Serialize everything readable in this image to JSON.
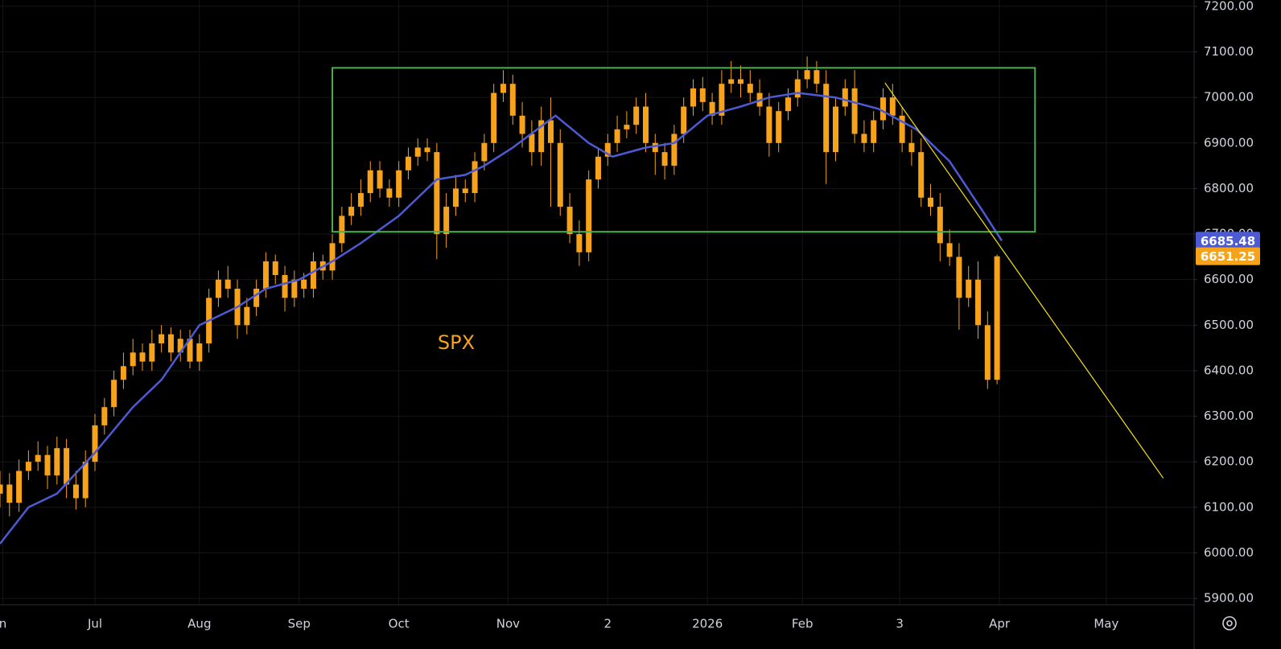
{
  "chart_data": {
    "type": "candlestick",
    "annotation": "SPX",
    "candle_color": "#f7a21b",
    "grid": true,
    "xlim": [
      0,
      251.5
    ],
    "ylim": [
      5886,
      7214
    ],
    "xticks": [
      {
        "value": 0.6,
        "label": "n"
      },
      {
        "value": 20,
        "label": "Jul"
      },
      {
        "value": 42,
        "label": "Aug"
      },
      {
        "value": 63,
        "label": "Sep"
      },
      {
        "value": 84,
        "label": "Oct"
      },
      {
        "value": 107,
        "label": "Nov"
      },
      {
        "value": 128,
        "label": "2"
      },
      {
        "value": 149,
        "label": "2026"
      },
      {
        "value": 169,
        "label": "Feb"
      },
      {
        "value": 189.5,
        "label": "3"
      },
      {
        "value": 210.5,
        "label": "Apr"
      },
      {
        "value": 233,
        "label": "May"
      }
    ],
    "yticks": [
      {
        "value": 7200,
        "label": "7200.00"
      },
      {
        "value": 7100,
        "label": "7100.00"
      },
      {
        "value": 7000,
        "label": "7000.00"
      },
      {
        "value": 6900,
        "label": "6900.00"
      },
      {
        "value": 6800,
        "label": "6800.00"
      },
      {
        "value": 6700,
        "label": "6700.00"
      },
      {
        "value": 6600,
        "label": "6600.00"
      },
      {
        "value": 6500,
        "label": "6500.00"
      },
      {
        "value": 6400,
        "label": "6400.00"
      },
      {
        "value": 6300,
        "label": "6300.00"
      },
      {
        "value": 6200,
        "label": "6200.00"
      },
      {
        "value": 6100,
        "label": "6100.00"
      },
      {
        "value": 6000,
        "label": "6000.00"
      },
      {
        "value": 5900,
        "label": "5900.00"
      }
    ],
    "x": [
      0,
      2,
      4,
      6,
      8,
      10,
      12,
      14,
      16,
      18,
      20,
      22,
      24,
      26,
      28,
      30,
      32,
      34,
      36,
      38,
      40,
      42,
      44,
      46,
      48,
      50,
      52,
      54,
      56,
      58,
      60,
      62,
      64,
      66,
      68,
      70,
      72,
      74,
      76,
      78,
      80,
      82,
      84,
      86,
      88,
      90,
      92,
      94,
      96,
      98,
      100,
      102,
      104,
      106,
      108,
      110,
      112,
      114,
      116,
      118,
      120,
      122,
      124,
      126,
      128,
      130,
      132,
      134,
      136,
      138,
      140,
      142,
      144,
      146,
      148,
      150,
      152,
      154,
      156,
      158,
      160,
      162,
      164,
      166,
      168,
      170,
      172,
      174,
      176,
      178,
      180,
      182,
      184,
      186,
      188,
      190,
      192,
      194,
      196,
      198,
      200,
      202,
      204,
      206,
      208,
      210
    ],
    "open": [
      6130,
      6150,
      6110,
      6180,
      6200,
      6215,
      6170,
      6230,
      6150,
      6120,
      6200,
      6280,
      6320,
      6380,
      6410,
      6440,
      6420,
      6460,
      6480,
      6440,
      6470,
      6420,
      6460,
      6560,
      6600,
      6580,
      6500,
      6540,
      6580,
      6640,
      6610,
      6560,
      6600,
      6580,
      6640,
      6620,
      6680,
      6740,
      6760,
      6790,
      6840,
      6800,
      6780,
      6840,
      6870,
      6890,
      6880,
      6700,
      6760,
      6800,
      6790,
      6860,
      6900,
      7010,
      7030,
      6960,
      6920,
      6880,
      6950,
      6900,
      6760,
      6700,
      6660,
      6820,
      6870,
      6900,
      6930,
      6940,
      6980,
      6900,
      6880,
      6850,
      6920,
      6980,
      7020,
      6990,
      6960,
      7030,
      7040,
      7030,
      7010,
      6980,
      6900,
      6970,
      7000,
      7040,
      7060,
      7030,
      6880,
      6980,
      7020,
      6920,
      6900,
      6950,
      7000,
      6960,
      6900,
      6880,
      6780,
      6760,
      6680,
      6650,
      6560,
      6600,
      6500,
      6380
    ],
    "high": [
      6180,
      6175,
      6205,
      6225,
      6245,
      6235,
      6255,
      6250,
      6180,
      6225,
      6305,
      6340,
      6400,
      6440,
      6470,
      6460,
      6490,
      6500,
      6495,
      6490,
      6490,
      6480,
      6580,
      6620,
      6630,
      6600,
      6560,
      6600,
      6660,
      6655,
      6630,
      6620,
      6615,
      6660,
      6655,
      6700,
      6760,
      6790,
      6820,
      6860,
      6860,
      6820,
      6860,
      6890,
      6910,
      6910,
      6900,
      6790,
      6830,
      6820,
      6880,
      6920,
      7030,
      7060,
      7050,
      6990,
      6950,
      6980,
      7000,
      6930,
      6790,
      6730,
      6840,
      6890,
      6920,
      6960,
      6970,
      7000,
      7010,
      6920,
      6900,
      6940,
      7000,
      7040,
      7045,
      7010,
      7060,
      7080,
      7070,
      7060,
      7040,
      7010,
      6990,
      7020,
      7060,
      7090,
      7080,
      7060,
      7000,
      7040,
      7060,
      6950,
      6970,
      7020,
      7030,
      6980,
      6930,
      6910,
      6810,
      6790,
      6710,
      6680,
      6630,
      6640,
      6530,
      6655
    ],
    "low": [
      6100,
      6080,
      6090,
      6160,
      6180,
      6140,
      6150,
      6120,
      6095,
      6100,
      6180,
      6260,
      6300,
      6360,
      6390,
      6400,
      6400,
      6440,
      6420,
      6420,
      6405,
      6400,
      6440,
      6540,
      6560,
      6470,
      6480,
      6520,
      6560,
      6590,
      6530,
      6540,
      6560,
      6560,
      6600,
      6600,
      6660,
      6720,
      6740,
      6770,
      6780,
      6760,
      6760,
      6820,
      6850,
      6860,
      6645,
      6670,
      6740,
      6770,
      6770,
      6840,
      6880,
      6990,
      6940,
      6890,
      6850,
      6850,
      6760,
      6740,
      6680,
      6630,
      6640,
      6800,
      6850,
      6880,
      6910,
      6920,
      6880,
      6830,
      6820,
      6830,
      6900,
      6960,
      6970,
      6940,
      6940,
      7010,
      7000,
      6990,
      6960,
      6870,
      6880,
      6950,
      6980,
      7020,
      7010,
      6810,
      6860,
      6960,
      6900,
      6880,
      6880,
      6930,
      6940,
      6880,
      6850,
      6760,
      6740,
      6640,
      6630,
      6490,
      6540,
      6470,
      6360,
      6370
    ],
    "close": [
      6150,
      6110,
      6180,
      6200,
      6215,
      6170,
      6230,
      6150,
      6120,
      6200,
      6280,
      6320,
      6380,
      6410,
      6440,
      6420,
      6460,
      6480,
      6440,
      6470,
      6420,
      6460,
      6560,
      6600,
      6580,
      6500,
      6540,
      6580,
      6640,
      6610,
      6560,
      6600,
      6580,
      6640,
      6620,
      6680,
      6740,
      6760,
      6790,
      6840,
      6800,
      6780,
      6840,
      6870,
      6890,
      6880,
      6700,
      6760,
      6800,
      6790,
      6860,
      6900,
      7010,
      7030,
      6960,
      6920,
      6880,
      6950,
      6900,
      6760,
      6700,
      6660,
      6820,
      6870,
      6900,
      6930,
      6940,
      6980,
      6900,
      6880,
      6850,
      6920,
      6980,
      7020,
      6990,
      6960,
      7030,
      7040,
      7030,
      7010,
      6980,
      6900,
      6970,
      7000,
      7040,
      7060,
      7030,
      6880,
      6980,
      7020,
      6920,
      6900,
      6950,
      7000,
      6960,
      6900,
      6880,
      6780,
      6760,
      6680,
      6650,
      6560,
      6600,
      6500,
      6380,
      6651.25
    ],
    "ma": {
      "color": "#4c5bd4",
      "x": [
        0,
        6,
        12,
        20,
        28,
        34,
        42,
        50,
        56,
        63,
        70,
        76,
        84,
        92,
        98,
        102,
        108,
        117,
        124,
        129,
        136,
        142,
        149,
        156,
        162,
        168,
        176,
        185,
        193,
        200,
        207,
        211
      ],
      "values": [
        6020,
        6100,
        6130,
        6220,
        6320,
        6380,
        6500,
        6540,
        6580,
        6600,
        6640,
        6680,
        6740,
        6820,
        6830,
        6850,
        6890,
        6960,
        6900,
        6870,
        6890,
        6900,
        6960,
        6980,
        7000,
        7010,
        7000,
        6975,
        6930,
        6860,
        6750,
        6685.48
      ]
    },
    "box": {
      "color": "#4caf50",
      "x": [
        70,
        218
      ],
      "y": [
        6705,
        7065
      ]
    },
    "trendline": {
      "color": "#f5e11a",
      "x": [
        186.4,
        245
      ],
      "y": [
        7032,
        6164
      ]
    }
  }
}
